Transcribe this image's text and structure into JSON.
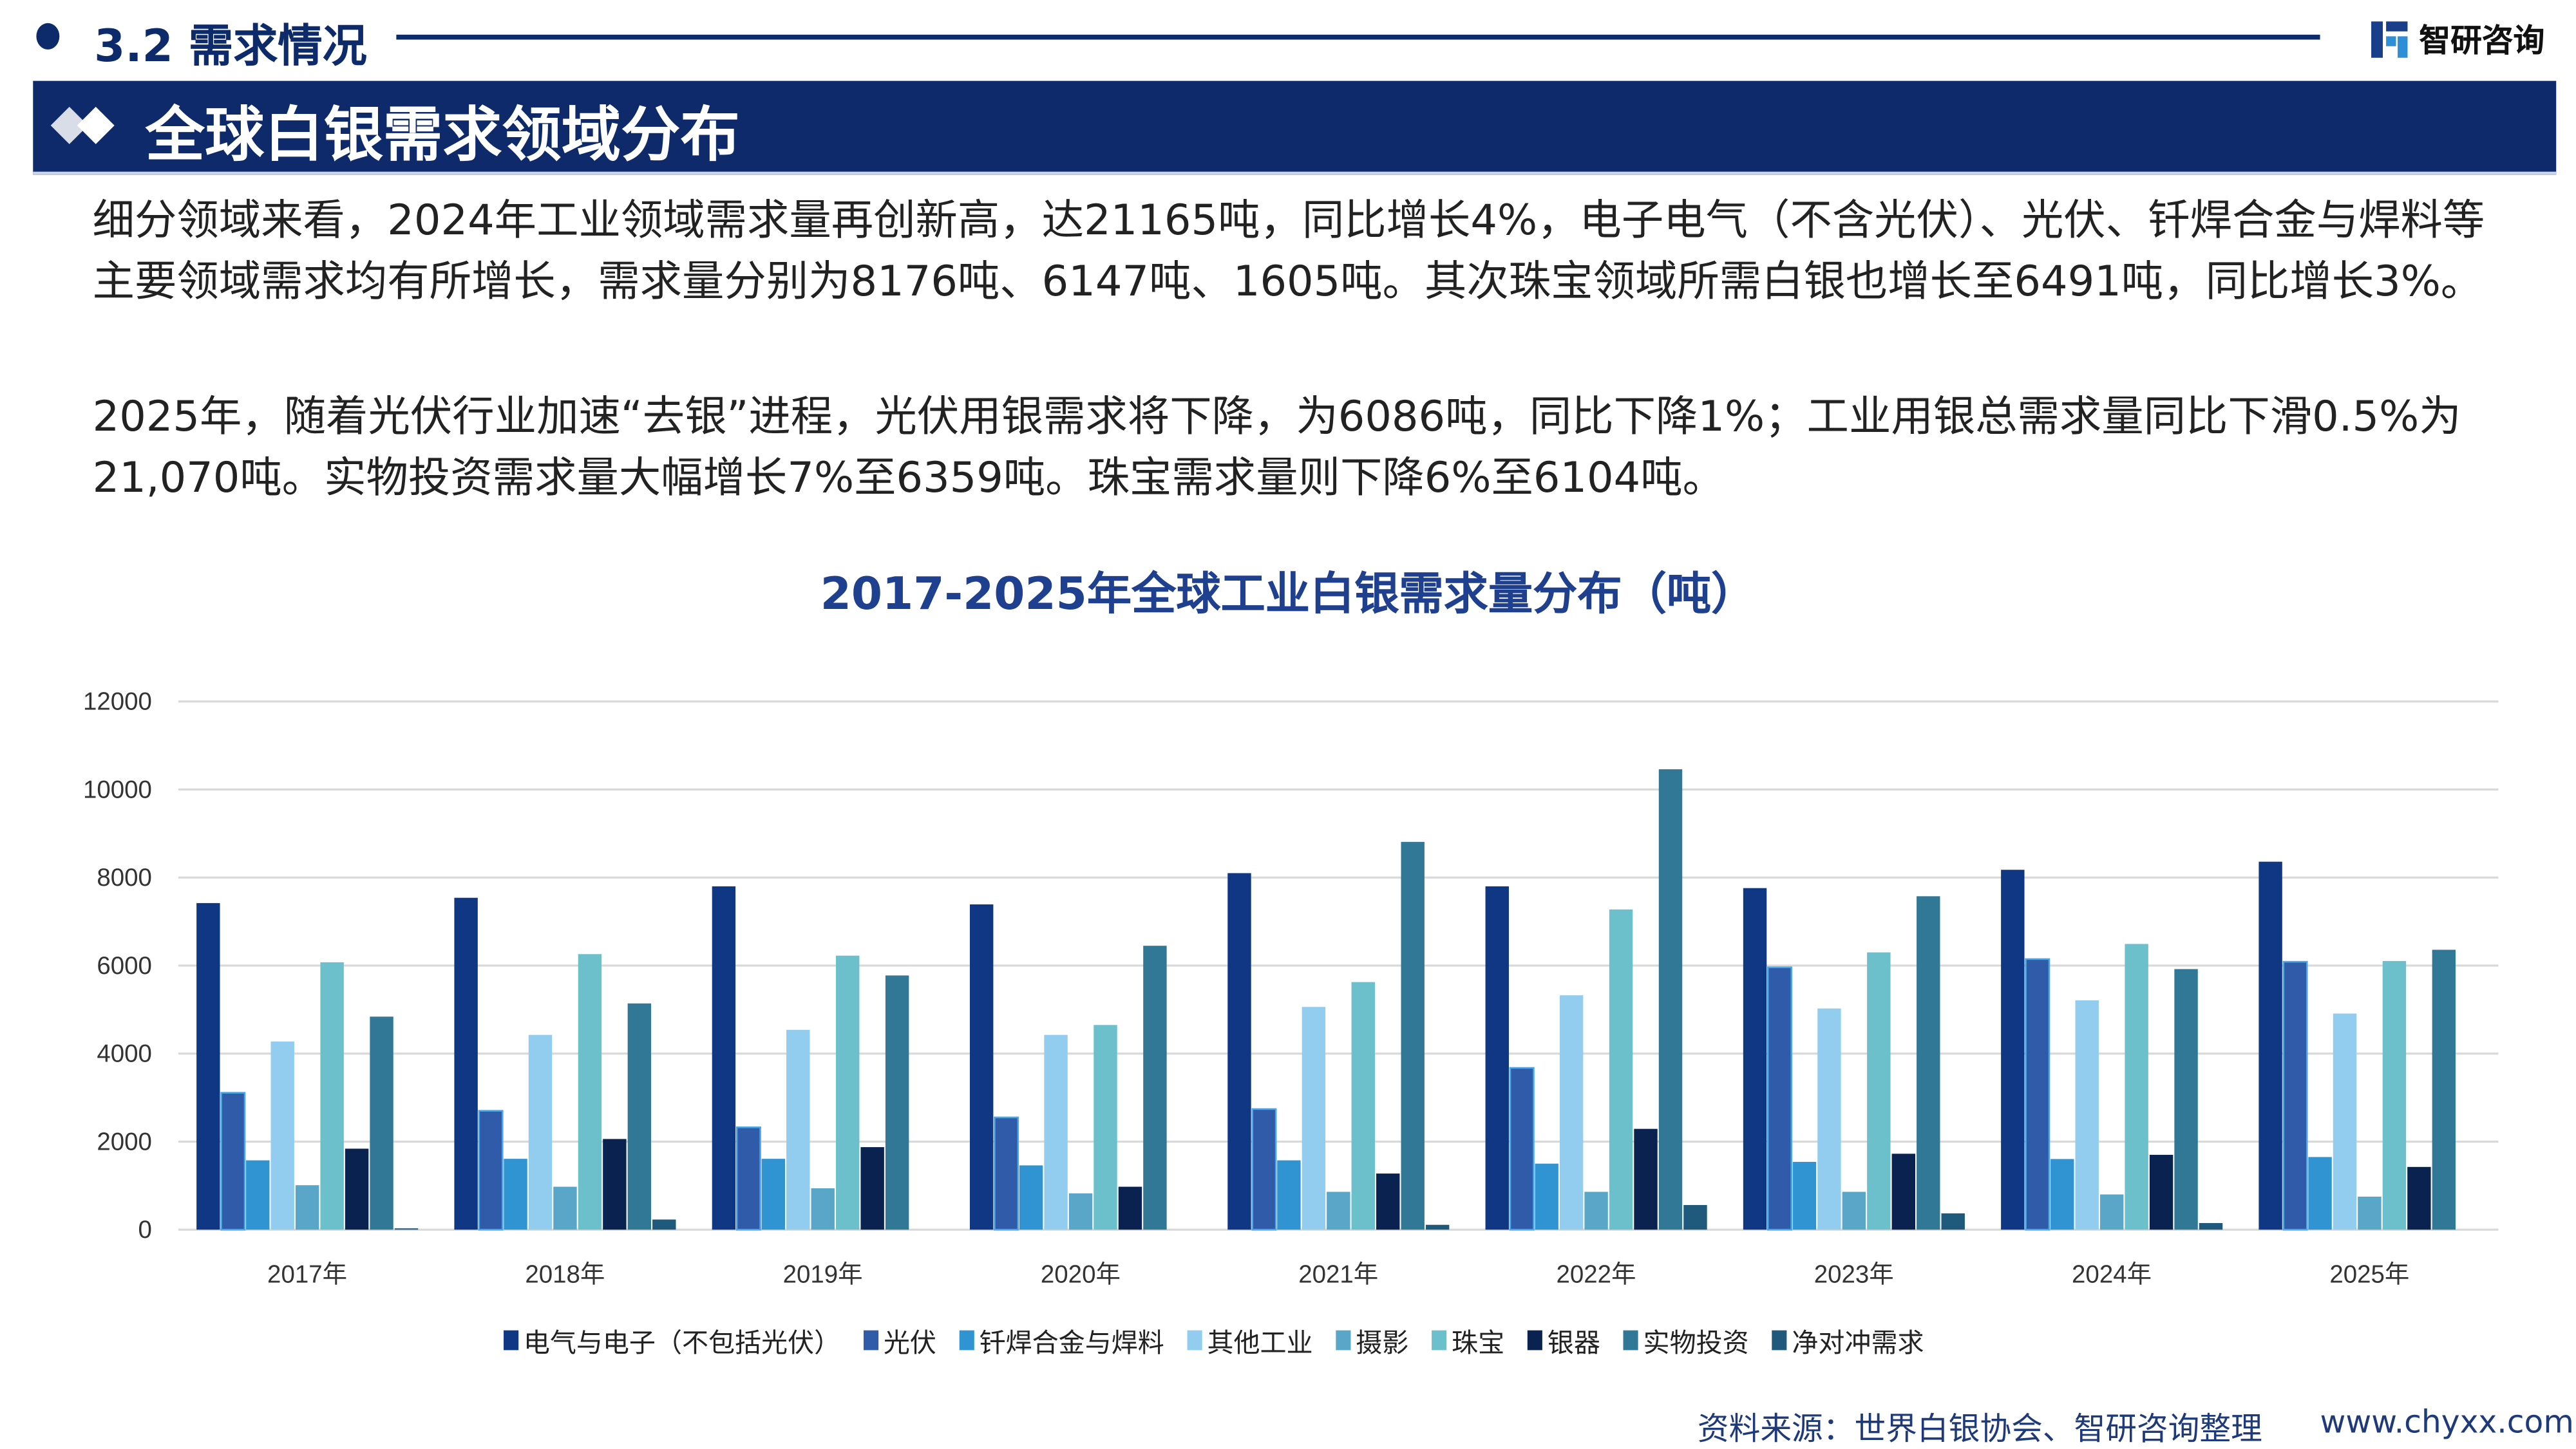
{
  "header": {
    "section_title": "3.2 需求情况",
    "logo_text": "智研咨询"
  },
  "banner": {
    "title": "全球白银需求领域分布"
  },
  "paragraphs": [
    "细分领域来看，2024年工业领域需求量再创新高，达21165吨，同比增长4%，电子电气（不含光伏）、光伏、钎焊合金与焊料等主要领域需求均有所增长，需求量分别为8176吨、6147吨、1605吨。其次珠宝领域所需白银也增长至6491吨，同比增长3%。",
    "2025年，随着光伏行业加速“去银”进程，光伏用银需求将下降，为6086吨，同比下降1%；工业用银总需求量同比下滑0.5%为21,070吨。实物投资需求量大幅增长7%至6359吨。珠宝需求量则下降6%至6104吨。"
  ],
  "chart_data": {
    "type": "bar",
    "title": "2017-2025年全球工业白银需求量分布（吨）",
    "xlabel": "",
    "ylabel": "",
    "ylim": [
      0,
      12000
    ],
    "yticks": [
      "0",
      "2000",
      "4000",
      "6000",
      "8000",
      "10000",
      "12000"
    ],
    "grid": true,
    "legend_position": "bottom",
    "categories": [
      "2017年",
      "2018年",
      "2019年",
      "2020年",
      "2021年",
      "2022年",
      "2023年",
      "2024年",
      "2025年"
    ],
    "series": [
      {
        "name": "电气与电子（不包括光伏）",
        "color": "#0f3784",
        "values": [
          7420,
          7540,
          7800,
          7390,
          8100,
          7800,
          7760,
          8176,
          8360
        ]
      },
      {
        "name": "光伏",
        "color": "#2f5ba8",
        "values": [
          3110,
          2700,
          2325,
          2550,
          2740,
          3675,
          5960,
          6147,
          6086
        ]
      },
      {
        "name": "钎焊合金与焊料",
        "color": "#3194d2",
        "values": [
          1575,
          1610,
          1610,
          1460,
          1575,
          1500,
          1540,
          1605,
          1650
        ]
      },
      {
        "name": "其他工业",
        "color": "#92cdf0",
        "values": [
          4275,
          4425,
          4540,
          4425,
          5060,
          5325,
          5025,
          5210,
          4910
        ]
      },
      {
        "name": "摄影",
        "color": "#5aa6c8",
        "values": [
          1010,
          975,
          940,
          825,
          860,
          860,
          860,
          800,
          750
        ]
      },
      {
        "name": "珠宝",
        "color": "#6cc0cc",
        "values": [
          6075,
          6260,
          6225,
          4650,
          5625,
          7275,
          6300,
          6491,
          6104
        ]
      },
      {
        "name": "银器",
        "color": "#0a2250",
        "values": [
          1840,
          2060,
          1875,
          975,
          1275,
          2290,
          1725,
          1700,
          1425
        ]
      },
      {
        "name": "实物投资",
        "color": "#307896",
        "values": [
          4840,
          5140,
          5775,
          6450,
          8810,
          10460,
          7575,
          5920,
          6359
        ]
      },
      {
        "name": "净对冲需求",
        "color": "#1f5a7c",
        "values": [
          30,
          230,
          0,
          0,
          110,
          560,
          370,
          150,
          0
        ]
      }
    ]
  },
  "footer": {
    "source": "资料来源：世界白银协会、智研咨询整理",
    "url": "www.chyxx.com"
  }
}
